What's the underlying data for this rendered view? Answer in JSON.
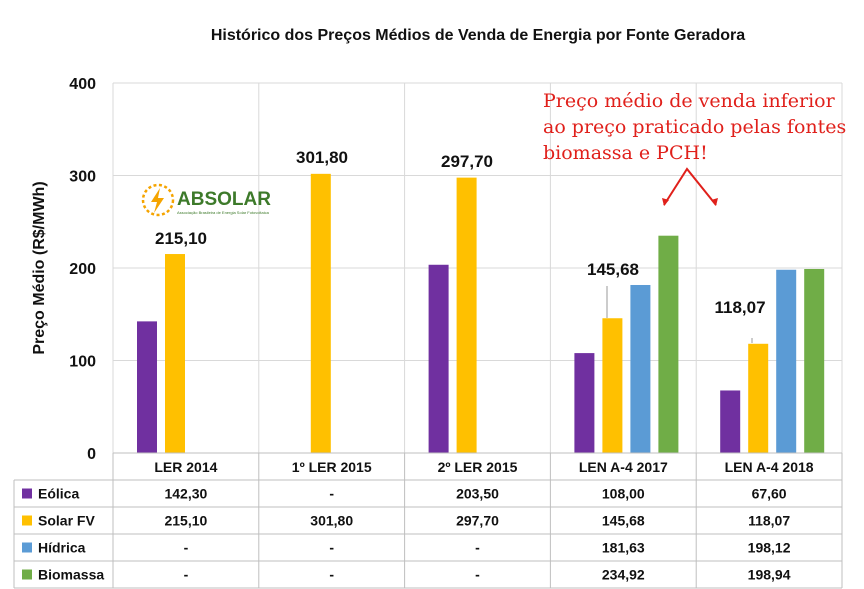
{
  "chart_data": {
    "type": "bar",
    "title": "Histórico dos Preços Médios de Venda de Energia por Fonte Geradora",
    "ylabel": "Preço Médio (R$/MWh)",
    "xlabel": "",
    "ylim": [
      0,
      400
    ],
    "yticks": [
      "0",
      "100",
      "200",
      "300",
      "400"
    ],
    "grid": true,
    "categories": [
      "LER 2014",
      "1º LER 2015",
      "2º LER 2015",
      "LEN A-4 2017",
      "LEN A-4 2018"
    ],
    "series": [
      {
        "name": "Eólica",
        "color": "#7030a0",
        "values": [
          142.3,
          null,
          203.5,
          108.0,
          67.6
        ],
        "table": [
          "142,30",
          "-",
          "203,50",
          "108,00",
          "67,60"
        ]
      },
      {
        "name": "Solar FV",
        "color": "#ffc000",
        "values": [
          215.1,
          301.8,
          297.7,
          145.68,
          118.07
        ],
        "table": [
          "215,10",
          "301,80",
          "297,70",
          "145,68",
          "118,07"
        ]
      },
      {
        "name": "Hídrica",
        "color": "#5b9bd5",
        "values": [
          null,
          null,
          null,
          181.63,
          198.12
        ],
        "table": [
          "-",
          "-",
          "-",
          "181,63",
          "198,12"
        ]
      },
      {
        "name": "Biomassa",
        "color": "#70ad47",
        "values": [
          null,
          null,
          null,
          234.92,
          198.94
        ],
        "table": [
          "-",
          "-",
          "-",
          "234,92",
          "198,94"
        ]
      }
    ],
    "data_labels": [
      "215,10",
      "301,80",
      "297,70",
      "145,68",
      "118,07"
    ],
    "annotation": [
      "Preço médio de venda inferior",
      "ao preço praticado pelas fontes",
      "biomassa e PCH!"
    ],
    "annotation_color": "#e0201b"
  },
  "logo": {
    "name": "ABSOLAR",
    "tagline": "Associação Brasileira de Energia Solar Fotovoltaica"
  }
}
